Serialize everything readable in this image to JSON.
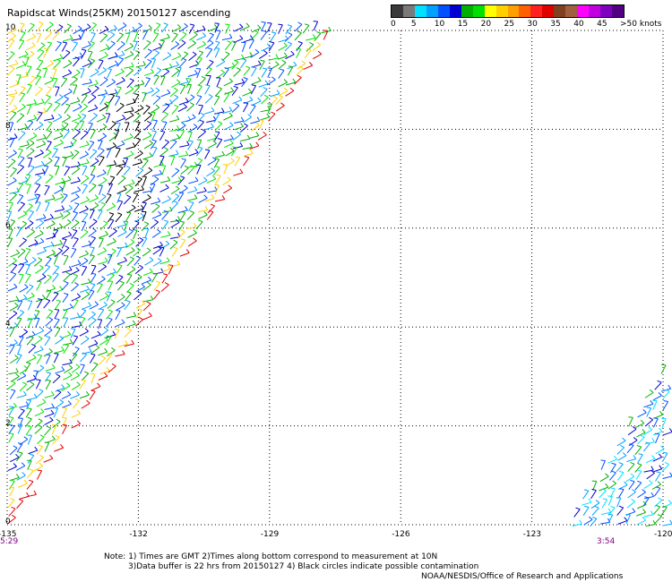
{
  "title": "Rapidscat Winds(25KM) 20150127 ascending",
  "legend": {
    "colors": [
      "#3a3a3a",
      "#7a7a7a",
      "#00e0ff",
      "#00a0ff",
      "#0050ff",
      "#0000d0",
      "#00b000",
      "#00e000",
      "#ffff00",
      "#ffd000",
      "#ffa000",
      "#ff6000",
      "#ff2020",
      "#e00000",
      "#804020",
      "#a06040",
      "#ff00ff",
      "#c000e0",
      "#8000c0",
      "#500080"
    ],
    "labels": [
      "0",
      "5",
      "10",
      "15",
      "20",
      "25",
      "30",
      "35",
      "40",
      "45",
      ">50 knots"
    ]
  },
  "axes": {
    "x_ticks": [
      "-135",
      "-132",
      "-129",
      "-126",
      "-123",
      "-120"
    ],
    "y_ticks": [
      "0",
      "2",
      "4",
      "6",
      "8",
      "10"
    ],
    "x_range": [
      -135,
      -120
    ],
    "y_range": [
      0,
      10
    ]
  },
  "times": {
    "left": "5:29",
    "right": "3:54"
  },
  "notes": {
    "line1": "Note: 1) Times are GMT 2)Times along bottom correspond to measurement at 10N",
    "line2": "3)Data buffer is 22 hrs from 20150127 4) Black circles indicate possible contamination"
  },
  "credit": "NOAA/NESDIS/Office of Research and Applications"
}
